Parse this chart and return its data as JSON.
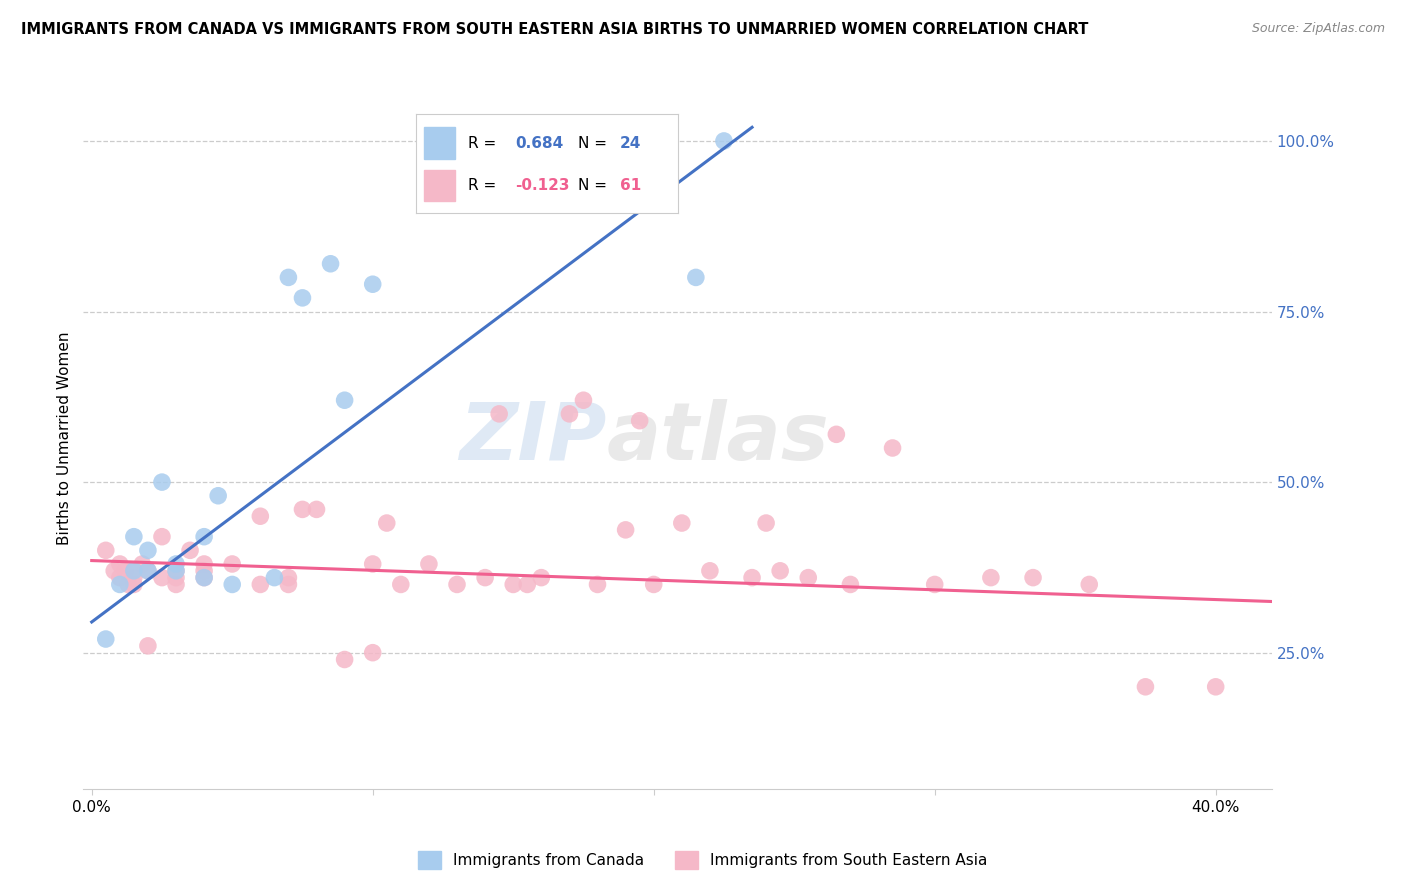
{
  "title": "IMMIGRANTS FROM CANADA VS IMMIGRANTS FROM SOUTH EASTERN ASIA BIRTHS TO UNMARRIED WOMEN CORRELATION CHART",
  "source": "Source: ZipAtlas.com",
  "ylabel": "Births to Unmarried Women",
  "y_ticks": [
    0.25,
    0.5,
    0.75,
    1.0
  ],
  "y_tick_labels": [
    "25.0%",
    "50.0%",
    "75.0%",
    "100.0%"
  ],
  "xlim": [
    -0.003,
    0.42
  ],
  "ylim": [
    0.05,
    1.08
  ],
  "legend_R_blue": "0.684",
  "legend_N_blue": "24",
  "legend_R_pink": "-0.123",
  "legend_N_pink": "61",
  "blue_color": "#A8CCEE",
  "pink_color": "#F5B8C8",
  "blue_line_color": "#4472C4",
  "pink_line_color": "#F06090",
  "blue_x": [
    0.005,
    0.01,
    0.015,
    0.015,
    0.02,
    0.02,
    0.025,
    0.03,
    0.03,
    0.04,
    0.04,
    0.045,
    0.05,
    0.065,
    0.07,
    0.075,
    0.085,
    0.09,
    0.1,
    0.165,
    0.175,
    0.185,
    0.215,
    0.225
  ],
  "blue_y": [
    0.27,
    0.35,
    0.37,
    0.42,
    0.37,
    0.4,
    0.5,
    0.37,
    0.38,
    0.36,
    0.42,
    0.48,
    0.35,
    0.36,
    0.8,
    0.77,
    0.82,
    0.62,
    0.79,
    0.97,
    0.98,
    1.0,
    0.8,
    1.0
  ],
  "pink_x": [
    0.005,
    0.008,
    0.01,
    0.01,
    0.012,
    0.013,
    0.015,
    0.015,
    0.015,
    0.018,
    0.02,
    0.02,
    0.025,
    0.025,
    0.03,
    0.03,
    0.03,
    0.035,
    0.04,
    0.04,
    0.04,
    0.05,
    0.06,
    0.06,
    0.07,
    0.07,
    0.075,
    0.08,
    0.09,
    0.1,
    0.1,
    0.105,
    0.11,
    0.12,
    0.13,
    0.14,
    0.145,
    0.15,
    0.155,
    0.16,
    0.17,
    0.175,
    0.18,
    0.19,
    0.195,
    0.2,
    0.21,
    0.22,
    0.235,
    0.24,
    0.245,
    0.255,
    0.265,
    0.27,
    0.285,
    0.3,
    0.32,
    0.335,
    0.355,
    0.375,
    0.4
  ],
  "pink_y": [
    0.4,
    0.37,
    0.36,
    0.38,
    0.37,
    0.35,
    0.35,
    0.36,
    0.37,
    0.38,
    0.26,
    0.37,
    0.36,
    0.42,
    0.35,
    0.36,
    0.37,
    0.4,
    0.36,
    0.37,
    0.38,
    0.38,
    0.35,
    0.45,
    0.35,
    0.36,
    0.46,
    0.46,
    0.24,
    0.25,
    0.38,
    0.44,
    0.35,
    0.38,
    0.35,
    0.36,
    0.6,
    0.35,
    0.35,
    0.36,
    0.6,
    0.62,
    0.35,
    0.43,
    0.59,
    0.35,
    0.44,
    0.37,
    0.36,
    0.44,
    0.37,
    0.36,
    0.57,
    0.35,
    0.55,
    0.35,
    0.36,
    0.36,
    0.35,
    0.2,
    0.2
  ],
  "blue_trend_x": [
    0.0,
    0.235
  ],
  "blue_trend_y": [
    0.295,
    1.02
  ],
  "pink_trend_x": [
    0.0,
    0.42
  ],
  "pink_trend_y": [
    0.385,
    0.325
  ],
  "watermark_top": "ZIP",
  "watermark_bottom": "atlas"
}
